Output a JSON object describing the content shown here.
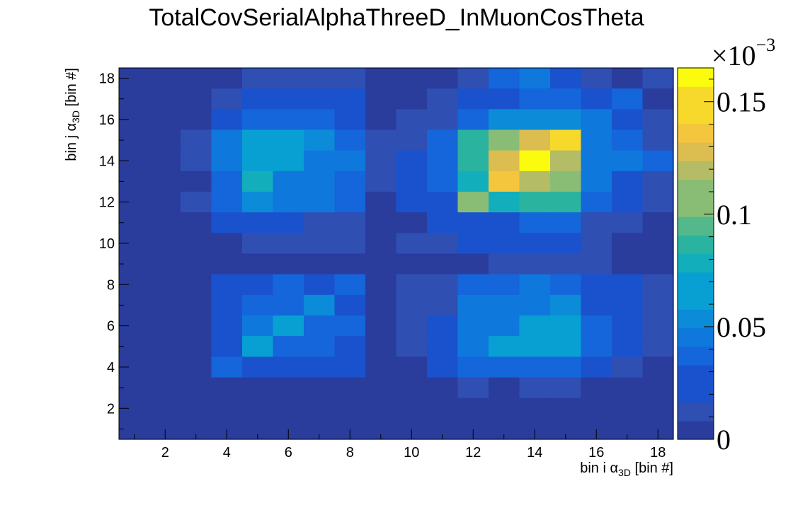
{
  "chart_data": {
    "type": "heatmap",
    "title": "TotalCovSerialAlphaThreeD_InMuonCosTheta",
    "xlabel": {
      "prefix": "bin i ",
      "symbol": "α",
      "subscript": "3D",
      "suffix": " [bin #]"
    },
    "ylabel": {
      "prefix": "bin j ",
      "symbol": "α",
      "subscript": "3D",
      "suffix": " [bin #]"
    },
    "xlim": [
      0.5,
      18.5
    ],
    "ylim": [
      0.5,
      18.5
    ],
    "x_ticks": [
      "2",
      "4",
      "6",
      "8",
      "10",
      "12",
      "14",
      "16",
      "18"
    ],
    "y_ticks": [
      "2",
      "4",
      "6",
      "8",
      "10",
      "12",
      "14",
      "16",
      "18"
    ],
    "z_range": [
      0,
      0.165
    ],
    "z_exponent_label": "×10",
    "z_exponent_power": "−3",
    "z_ticks": [
      {
        "value": 0,
        "label": "0"
      },
      {
        "value": 0.05,
        "label": "0.05"
      },
      {
        "value": 0.1,
        "label": "0.1"
      },
      {
        "value": 0.15,
        "label": "0.15"
      }
    ],
    "z_color_steps": 20,
    "palette": [
      "#2a3d9c",
      "#2f4fb3",
      "#1a52ce",
      "#1565db",
      "#0f78dd",
      "#0b8bd8",
      "#08a0d2",
      "#12aebc",
      "#2ab39e",
      "#54b98a",
      "#89bd76",
      "#b4bc66",
      "#dcbd50",
      "#f4c63e",
      "#f7d92c",
      "#fbfb0e"
    ],
    "grid": false,
    "legend": "colorbar-right",
    "z_rows_from_y18_to_y1": [
      [
        0,
        0,
        0,
        0,
        0.013,
        0.013,
        0.013,
        0.013,
        0,
        0,
        0,
        0.018,
        0.033,
        0.045,
        0.028,
        0.015,
        0,
        0.015
      ],
      [
        0,
        0,
        0,
        0.015,
        0.025,
        0.025,
        0.025,
        0.025,
        0,
        0,
        0.013,
        0.03,
        0.03,
        0.038,
        0.038,
        0.025,
        0.035,
        0
      ],
      [
        0,
        0,
        0,
        0.022,
        0.04,
        0.04,
        0.033,
        0.025,
        0,
        0.013,
        0.013,
        0.04,
        0.06,
        0.06,
        0.06,
        0.048,
        0.025,
        0.015
      ],
      [
        0,
        0,
        0.015,
        0.045,
        0.07,
        0.07,
        0.055,
        0.035,
        0.013,
        0.018,
        0.035,
        0.085,
        0.11,
        0.125,
        0.145,
        0.05,
        0.035,
        0.018
      ],
      [
        0,
        0,
        0.015,
        0.045,
        0.07,
        0.07,
        0.05,
        0.05,
        0.013,
        0.028,
        0.04,
        0.09,
        0.125,
        0.165,
        0.12,
        0.05,
        0.045,
        0.035
      ],
      [
        0,
        0,
        0,
        0.04,
        0.075,
        0.05,
        0.05,
        0.035,
        0.015,
        0.025,
        0.035,
        0.08,
        0.135,
        0.12,
        0.105,
        0.048,
        0.03,
        0.02
      ],
      [
        0,
        0,
        0.015,
        0.04,
        0.058,
        0.045,
        0.045,
        0.04,
        0,
        0.022,
        0.03,
        0.105,
        0.075,
        0.09,
        0.09,
        0.035,
        0.03,
        0.013
      ],
      [
        0,
        0,
        0,
        0.022,
        0.022,
        0.022,
        0.013,
        0.013,
        0,
        0.01,
        0.022,
        0.03,
        0.03,
        0.033,
        0.033,
        0.013,
        0.013,
        0
      ],
      [
        0,
        0,
        0,
        0,
        0.013,
        0.013,
        0.013,
        0.013,
        0,
        0.013,
        0.013,
        0.022,
        0.022,
        0.028,
        0.022,
        0.013,
        0,
        0
      ],
      [
        0,
        0,
        0,
        0,
        0,
        0,
        0,
        0,
        0,
        0,
        0,
        0,
        0.013,
        0.013,
        0.013,
        0.013,
        0,
        0
      ],
      [
        0,
        0,
        0,
        0.022,
        0.03,
        0.04,
        0.022,
        0.04,
        0,
        0.013,
        0.013,
        0.035,
        0.035,
        0.05,
        0.035,
        0.022,
        0.022,
        0.013
      ],
      [
        0,
        0,
        0,
        0.022,
        0.04,
        0.04,
        0.06,
        0.022,
        0,
        0.013,
        0.013,
        0.045,
        0.05,
        0.05,
        0.058,
        0.03,
        0.022,
        0.013
      ],
      [
        0,
        0,
        0,
        0.028,
        0.045,
        0.065,
        0.04,
        0.04,
        0,
        0.013,
        0.022,
        0.045,
        0.05,
        0.07,
        0.07,
        0.04,
        0.022,
        0.013
      ],
      [
        0,
        0,
        0,
        0.028,
        0.065,
        0.04,
        0.035,
        0.03,
        0,
        0.013,
        0.022,
        0.05,
        0.065,
        0.07,
        0.07,
        0.04,
        0.022,
        0.013
      ],
      [
        0,
        0,
        0,
        0.04,
        0.022,
        0.022,
        0.022,
        0.022,
        0,
        0,
        0.022,
        0.035,
        0.035,
        0.04,
        0.04,
        0.022,
        0.013,
        0
      ],
      [
        0,
        0,
        0,
        0,
        0,
        0,
        0,
        0,
        0,
        0,
        0,
        0.013,
        0,
        0.013,
        0.013,
        0,
        0,
        0
      ],
      [
        0,
        0,
        0,
        0,
        0,
        0,
        0,
        0,
        0,
        0,
        0,
        0,
        0,
        0,
        0,
        0,
        0,
        0
      ],
      [
        0,
        0,
        0,
        0,
        0,
        0,
        0,
        0,
        0,
        0,
        0,
        0,
        0,
        0,
        0,
        0,
        0,
        0
      ]
    ]
  }
}
